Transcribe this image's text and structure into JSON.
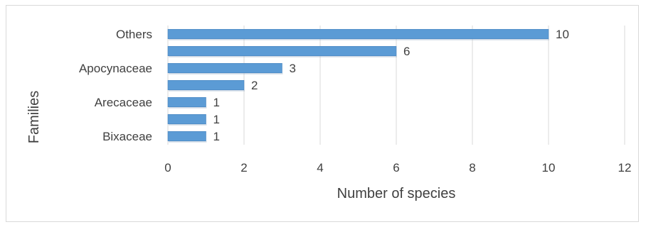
{
  "chart_data": {
    "type": "bar",
    "orientation": "horizontal",
    "categories": [
      "Others",
      "",
      "Apocynaceae",
      "",
      "Arecaceae",
      "",
      "Bixaceae"
    ],
    "values": [
      10,
      6,
      3,
      2,
      1,
      1,
      1
    ],
    "xlabel": "Number of species",
    "ylabel": "Families",
    "xlim": [
      0,
      12
    ],
    "xticks": [
      "0",
      "2",
      "4",
      "6",
      "8",
      "10",
      "12"
    ],
    "grid": "vertical",
    "data_labels": true,
    "colors": {
      "bar": "#5b9bd5",
      "bar_edge": "#4a86c0",
      "grid": "#d9d9d9",
      "text": "#404040"
    }
  }
}
